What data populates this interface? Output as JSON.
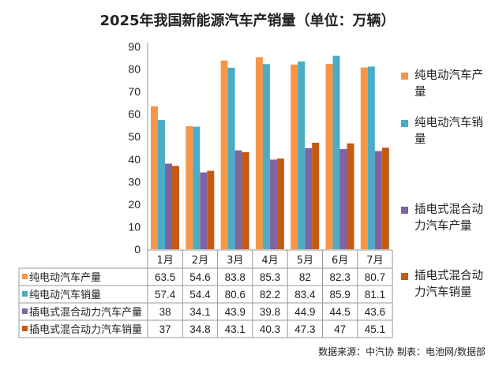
{
  "chart_data": {
    "type": "bar",
    "title": "2025年我国新能源汽车产销量（单位：万辆）",
    "categories": [
      "1月",
      "2月",
      "3月",
      "4月",
      "5月",
      "6月",
      "7月"
    ],
    "series": [
      {
        "name": "纯电动汽车产量",
        "color": "#f79646",
        "values": [
          63.5,
          54.6,
          83.8,
          85.3,
          82,
          82.3,
          80.7
        ]
      },
      {
        "name": "纯电动汽车销量",
        "color": "#4bacc6",
        "values": [
          57.4,
          54.4,
          80.6,
          82.2,
          83.4,
          85.9,
          81.1
        ]
      },
      {
        "name": "插电式混合动力汽车产量",
        "color": "#8064a2",
        "values": [
          38,
          34.1,
          43.9,
          39.8,
          44.9,
          44.5,
          43.6
        ]
      },
      {
        "name": "插电式混合动力汽车销量",
        "color": "#c55a11",
        "values": [
          37,
          34.8,
          43.1,
          40.3,
          47.3,
          47,
          45.1
        ]
      }
    ],
    "ylim": [
      0,
      90
    ],
    "yticks": [
      0,
      10,
      20,
      30,
      40,
      50,
      60,
      70,
      80,
      90
    ],
    "grid": false,
    "legend_placement": "right",
    "data_table": true
  },
  "source": "数据来源：中汽协  制表：电池网/数据部"
}
